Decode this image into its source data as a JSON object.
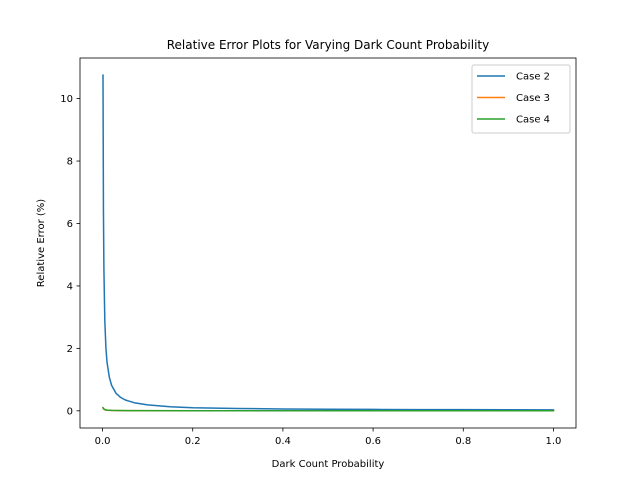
{
  "chart_data": {
    "type": "line",
    "title": "Relative Error Plots for Varying Dark Count Probability",
    "xlabel": "Dark Count Probability",
    "ylabel": "Relative Error (%)",
    "xlim": [
      -0.05,
      1.05
    ],
    "ylim": [
      -0.55,
      11.3
    ],
    "xticks": [
      0.0,
      0.2,
      0.4,
      0.6,
      0.8,
      1.0
    ],
    "xtick_labels": [
      "0.0",
      "0.2",
      "0.4",
      "0.6",
      "0.8",
      "1.0"
    ],
    "yticks": [
      0,
      2,
      4,
      6,
      8,
      10
    ],
    "ytick_labels": [
      "0",
      "2",
      "4",
      "6",
      "8",
      "10"
    ],
    "grid": false,
    "legend_position": "top-right",
    "series": [
      {
        "name": "Case 2",
        "color": "#1f77b4",
        "x": [
          0.001,
          0.002,
          0.003,
          0.005,
          0.0075,
          0.01,
          0.015,
          0.02,
          0.03,
          0.04,
          0.05,
          0.07,
          0.1,
          0.15,
          0.2,
          0.3,
          0.4,
          0.5,
          0.6,
          0.7,
          0.8,
          0.9,
          1.0
        ],
        "y": [
          10.75,
          6.4,
          4.55,
          2.9,
          2.0,
          1.55,
          1.08,
          0.82,
          0.56,
          0.43,
          0.35,
          0.26,
          0.19,
          0.13,
          0.1,
          0.075,
          0.06,
          0.05,
          0.045,
          0.04,
          0.037,
          0.034,
          0.032
        ]
      },
      {
        "name": "Case 3",
        "color": "#ff7f0e",
        "x": [
          0.001,
          0.003,
          0.006,
          0.01,
          0.02,
          0.05,
          0.1,
          0.2,
          0.4,
          0.6,
          0.8,
          1.0
        ],
        "y": [
          0.09,
          0.05,
          0.03,
          0.02,
          0.012,
          0.006,
          0.004,
          0.003,
          0.002,
          0.0015,
          0.001,
          0.001
        ]
      },
      {
        "name": "Case 4",
        "color": "#2ca02c",
        "x": [
          0.001,
          0.003,
          0.006,
          0.01,
          0.02,
          0.05,
          0.1,
          0.2,
          0.4,
          0.6,
          0.8,
          1.0
        ],
        "y": [
          0.1,
          0.06,
          0.035,
          0.022,
          0.014,
          0.008,
          0.005,
          0.003,
          0.002,
          0.0015,
          0.001,
          0.001
        ]
      }
    ]
  }
}
